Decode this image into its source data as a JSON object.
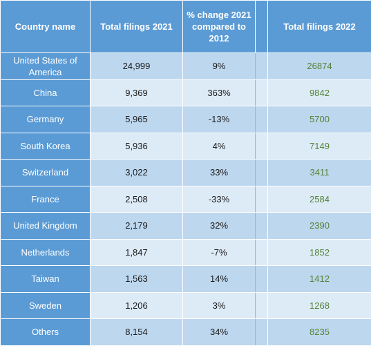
{
  "table": {
    "headers": {
      "country": "Country name",
      "total_2021": "Total filings 2021",
      "pct_change": "% change 2021 compared to 2012",
      "total_2022": "Total filings 2022"
    },
    "rows": [
      {
        "country": "United States of America",
        "total_2021": "24,999",
        "pct_change": "9%",
        "total_2022": "26874"
      },
      {
        "country": "China",
        "total_2021": "9,369",
        "pct_change": "363%",
        "total_2022": "9842"
      },
      {
        "country": "Germany",
        "total_2021": "5,965",
        "pct_change": "-13%",
        "total_2022": "5700"
      },
      {
        "country": "South Korea",
        "total_2021": "5,936",
        "pct_change": "4%",
        "total_2022": "7149"
      },
      {
        "country": "Switzerland",
        "total_2021": "3,022",
        "pct_change": "33%",
        "total_2022": "3411"
      },
      {
        "country": "France",
        "total_2021": "2,508",
        "pct_change": "-33%",
        "total_2022": "2584"
      },
      {
        "country": "United Kingdom",
        "total_2021": "2,179",
        "pct_change": "32%",
        "total_2022": "2390"
      },
      {
        "country": "Netherlands",
        "total_2021": "1,847",
        "pct_change": "-7%",
        "total_2022": "1852"
      },
      {
        "country": "Taiwan",
        "total_2021": "1,563",
        "pct_change": "14%",
        "total_2022": "1412"
      },
      {
        "country": "Sweden",
        "total_2021": "1,206",
        "pct_change": "3%",
        "total_2022": "1268"
      },
      {
        "country": "Others",
        "total_2021": "8,154",
        "pct_change": "34%",
        "total_2022": "8235"
      }
    ]
  },
  "colors": {
    "header_bg": "#5b9bd5",
    "row_band_1": "#bdd7ee",
    "row_band_2": "#ddebf7",
    "total_2022_text": "#548235"
  }
}
